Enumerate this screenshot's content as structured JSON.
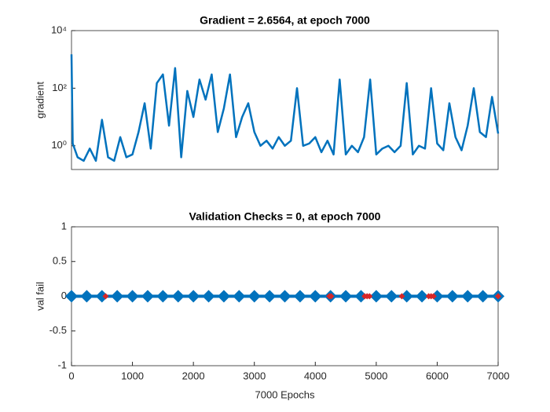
{
  "chart_data": [
    {
      "type": "line",
      "title": "Gradient = 2.6564, at epoch 7000",
      "ylabel": "gradient",
      "log_scale": "y",
      "xlim": [
        0,
        7000
      ],
      "ylim": [
        0.15,
        10000
      ],
      "yticks": [
        {
          "value": 1,
          "label": "10⁰"
        },
        {
          "value": 100,
          "label": "10²"
        },
        {
          "value": 10000,
          "label": "10⁴"
        }
      ],
      "x": [
        0,
        20,
        100,
        200,
        300,
        400,
        500,
        600,
        700,
        800,
        900,
        1000,
        1100,
        1200,
        1300,
        1400,
        1500,
        1600,
        1700,
        1800,
        1900,
        2000,
        2100,
        2200,
        2300,
        2400,
        2500,
        2600,
        2700,
        2800,
        2900,
        3000,
        3100,
        3200,
        3300,
        3400,
        3500,
        3600,
        3700,
        3800,
        3900,
        4000,
        4100,
        4200,
        4300,
        4400,
        4500,
        4600,
        4700,
        4800,
        4900,
        5000,
        5100,
        5200,
        5300,
        5400,
        5500,
        5600,
        5700,
        5800,
        5900,
        6000,
        6100,
        6200,
        6300,
        6400,
        6500,
        6600,
        6700,
        6800,
        6900,
        7000
      ],
      "series": [
        {
          "color": "#0072bd",
          "values": [
            1500,
            1.2,
            0.4,
            0.3,
            0.8,
            0.3,
            8,
            0.4,
            0.3,
            2,
            0.4,
            0.5,
            3,
            30,
            0.8,
            150,
            300,
            5,
            500,
            0.4,
            80,
            10,
            200,
            40,
            300,
            3,
            20,
            300,
            2,
            10,
            30,
            3,
            1,
            1.5,
            0.8,
            2,
            1,
            1.5,
            100,
            1,
            1.2,
            2,
            0.6,
            1.5,
            0.5,
            200,
            0.5,
            1,
            0.6,
            2,
            200,
            0.5,
            0.8,
            1,
            0.6,
            1,
            150,
            0.5,
            1,
            0.8,
            100,
            1.2,
            0.7,
            30,
            2,
            0.7,
            5,
            100,
            3,
            2,
            50,
            2.6564
          ]
        }
      ]
    },
    {
      "type": "line",
      "title": "Validation Checks = 0, at epoch 7000",
      "ylabel": "val fail",
      "xlabel": "7000 Epochs",
      "xlim": [
        0,
        7000
      ],
      "ylim": [
        -1,
        1
      ],
      "xticks": [
        0,
        1000,
        2000,
        3000,
        4000,
        5000,
        6000,
        7000
      ],
      "yticks": [
        -1,
        -0.5,
        0,
        0.5,
        1
      ],
      "series": [
        {
          "color": "#0072bd",
          "x": [
            0,
            250,
            500,
            750,
            1000,
            1250,
            1500,
            1750,
            2000,
            2250,
            2500,
            2750,
            3000,
            3250,
            3500,
            3750,
            4000,
            4250,
            4500,
            4750,
            5000,
            5250,
            5500,
            5750,
            6000,
            6250,
            6500,
            6750,
            7000
          ],
          "values": [
            0,
            0,
            0,
            0,
            0,
            0,
            0,
            0,
            0,
            0,
            0,
            0,
            0,
            0,
            0,
            0,
            0,
            0,
            0,
            0,
            0,
            0,
            0,
            0,
            0,
            0,
            0,
            0,
            0
          ]
        },
        {
          "color": "#d62728",
          "x": [
            560,
            4230,
            4260,
            4810,
            4850,
            4890,
            5420,
            5860,
            5900,
            5940,
            7000
          ],
          "values": [
            0,
            0,
            0,
            0,
            0,
            0,
            0,
            0,
            0,
            0,
            0
          ]
        }
      ]
    }
  ]
}
